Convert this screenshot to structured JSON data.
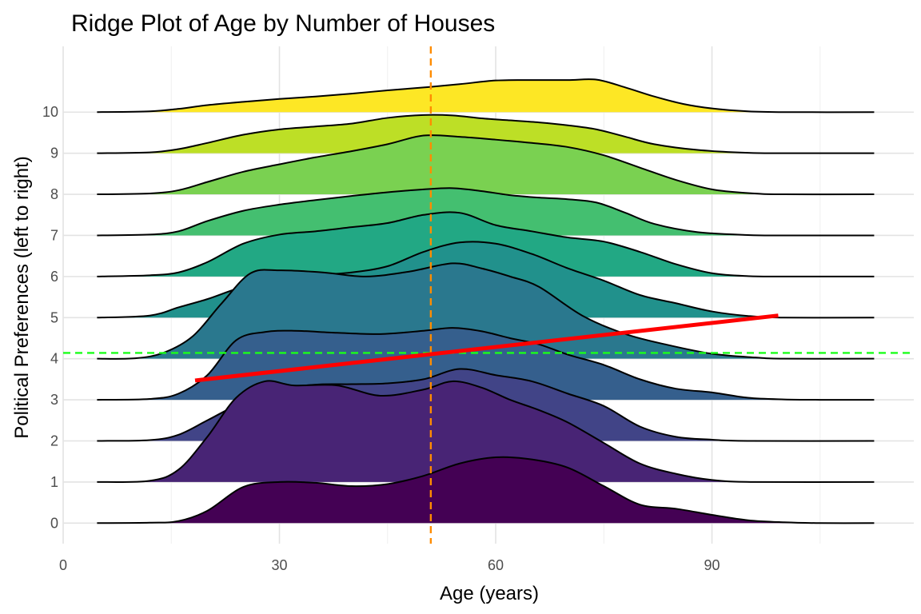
{
  "chart_data": {
    "type": "area",
    "subtype": "ridgeline",
    "title": "Ridge Plot of Age by Number of Houses",
    "xlabel": "Age (years)",
    "ylabel": "Political Preferences (left to right)",
    "xlim": [
      0,
      118
    ],
    "ylim": [
      -0.5,
      11.6
    ],
    "x_ticks": [
      0,
      30,
      60,
      90
    ],
    "y_ticks": [
      0,
      1,
      2,
      3,
      4,
      5,
      6,
      7,
      8,
      9,
      10
    ],
    "grid": true,
    "legend": "none",
    "x_grid": [
      0,
      15,
      30,
      45,
      60,
      75,
      90,
      105
    ],
    "x_range_density": [
      4.7,
      112.5
    ],
    "ridge_scale": 1.6,
    "colors": [
      "#440154",
      "#482475",
      "#414487",
      "#355f8d",
      "#2a788e",
      "#21918c",
      "#22a884",
      "#44bf70",
      "#7ad151",
      "#bddf26",
      "#fde725"
    ],
    "series": [
      {
        "name": "0",
        "knots": [
          [
            4.7,
            0
          ],
          [
            12,
            0.01
          ],
          [
            16,
            0.05
          ],
          [
            20,
            0.3
          ],
          [
            25,
            0.88
          ],
          [
            30,
            1.0
          ],
          [
            35,
            0.98
          ],
          [
            40,
            0.9
          ],
          [
            45,
            0.95
          ],
          [
            50,
            1.15
          ],
          [
            55,
            1.45
          ],
          [
            60,
            1.6
          ],
          [
            65,
            1.55
          ],
          [
            70,
            1.35
          ],
          [
            75,
            0.9
          ],
          [
            80,
            0.45
          ],
          [
            85,
            0.35
          ],
          [
            90,
            0.2
          ],
          [
            95,
            0.07
          ],
          [
            100,
            0.02
          ],
          [
            105,
            0
          ],
          [
            112.5,
            0
          ]
        ]
      },
      {
        "name": "1",
        "knots": [
          [
            4.7,
            0
          ],
          [
            12,
            0.03
          ],
          [
            16,
            0.3
          ],
          [
            20,
            1.1
          ],
          [
            24,
            2.05
          ],
          [
            28,
            2.45
          ],
          [
            32,
            2.35
          ],
          [
            38,
            2.35
          ],
          [
            44,
            2.1
          ],
          [
            50,
            2.25
          ],
          [
            54,
            2.45
          ],
          [
            58,
            2.3
          ],
          [
            62,
            2.0
          ],
          [
            66,
            1.75
          ],
          [
            70,
            1.45
          ],
          [
            75,
            0.95
          ],
          [
            80,
            0.45
          ],
          [
            85,
            0.2
          ],
          [
            90,
            0.05
          ],
          [
            96,
            0
          ],
          [
            112.5,
            0
          ]
        ]
      },
      {
        "name": "2",
        "knots": [
          [
            4.7,
            0
          ],
          [
            12,
            0.02
          ],
          [
            16,
            0.15
          ],
          [
            20,
            0.5
          ],
          [
            25,
            0.95
          ],
          [
            30,
            1.25
          ],
          [
            35,
            1.37
          ],
          [
            40,
            1.38
          ],
          [
            45,
            1.4
          ],
          [
            50,
            1.5
          ],
          [
            55,
            1.75
          ],
          [
            60,
            1.6
          ],
          [
            65,
            1.45
          ],
          [
            70,
            1.15
          ],
          [
            75,
            0.85
          ],
          [
            80,
            0.35
          ],
          [
            85,
            0.1
          ],
          [
            90,
            0.03
          ],
          [
            95,
            0
          ],
          [
            112.5,
            0
          ]
        ]
      },
      {
        "name": "3",
        "knots": [
          [
            4.7,
            0
          ],
          [
            12,
            0.02
          ],
          [
            16,
            0.15
          ],
          [
            20,
            0.6
          ],
          [
            24,
            1.45
          ],
          [
            28,
            1.65
          ],
          [
            32,
            1.68
          ],
          [
            38,
            1.63
          ],
          [
            44,
            1.6
          ],
          [
            50,
            1.68
          ],
          [
            54,
            1.75
          ],
          [
            58,
            1.67
          ],
          [
            62,
            1.5
          ],
          [
            66,
            1.35
          ],
          [
            70,
            1.1
          ],
          [
            75,
            0.85
          ],
          [
            80,
            0.5
          ],
          [
            85,
            0.27
          ],
          [
            90,
            0.18
          ],
          [
            95,
            0.05
          ],
          [
            100,
            0.01
          ],
          [
            105,
            0
          ],
          [
            112.5,
            0
          ]
        ]
      },
      {
        "name": "4",
        "knots": [
          [
            4.7,
            0
          ],
          [
            10,
            0.01
          ],
          [
            14,
            0.15
          ],
          [
            18,
            0.55
          ],
          [
            22,
            1.35
          ],
          [
            26,
            2.08
          ],
          [
            30,
            2.15
          ],
          [
            36,
            2.1
          ],
          [
            42,
            2.0
          ],
          [
            48,
            2.12
          ],
          [
            54,
            2.32
          ],
          [
            58,
            2.2
          ],
          [
            62,
            2.0
          ],
          [
            66,
            1.75
          ],
          [
            72,
            1.05
          ],
          [
            78,
            0.6
          ],
          [
            84,
            0.33
          ],
          [
            90,
            0.12
          ],
          [
            96,
            0.03
          ],
          [
            100,
            0
          ],
          [
            112.5,
            0
          ]
        ]
      },
      {
        "name": "5",
        "knots": [
          [
            4.7,
            0
          ],
          [
            12,
            0.05
          ],
          [
            16,
            0.25
          ],
          [
            20,
            0.45
          ],
          [
            25,
            0.75
          ],
          [
            30,
            0.9
          ],
          [
            35,
            1.03
          ],
          [
            40,
            1.1
          ],
          [
            45,
            1.25
          ],
          [
            50,
            1.6
          ],
          [
            55,
            1.83
          ],
          [
            60,
            1.8
          ],
          [
            65,
            1.55
          ],
          [
            70,
            1.2
          ],
          [
            75,
            0.9
          ],
          [
            80,
            0.55
          ],
          [
            85,
            0.35
          ],
          [
            90,
            0.15
          ],
          [
            95,
            0.04
          ],
          [
            100,
            0
          ],
          [
            112.5,
            0
          ]
        ]
      },
      {
        "name": "6",
        "knots": [
          [
            4.7,
            0
          ],
          [
            12,
            0.03
          ],
          [
            16,
            0.1
          ],
          [
            20,
            0.35
          ],
          [
            25,
            0.8
          ],
          [
            30,
            1.02
          ],
          [
            35,
            1.1
          ],
          [
            40,
            1.2
          ],
          [
            45,
            1.3
          ],
          [
            50,
            1.5
          ],
          [
            55,
            1.55
          ],
          [
            60,
            1.25
          ],
          [
            65,
            1.1
          ],
          [
            70,
            0.95
          ],
          [
            75,
            0.85
          ],
          [
            80,
            0.6
          ],
          [
            85,
            0.3
          ],
          [
            90,
            0.08
          ],
          [
            95,
            0.01
          ],
          [
            100,
            0
          ],
          [
            112.5,
            0
          ]
        ]
      },
      {
        "name": "7",
        "knots": [
          [
            4.7,
            0
          ],
          [
            12,
            0.02
          ],
          [
            16,
            0.1
          ],
          [
            20,
            0.35
          ],
          [
            25,
            0.6
          ],
          [
            30,
            0.75
          ],
          [
            35,
            0.86
          ],
          [
            40,
            0.96
          ],
          [
            45,
            1.05
          ],
          [
            50,
            1.12
          ],
          [
            54,
            1.15
          ],
          [
            58,
            1.08
          ],
          [
            62,
            0.98
          ],
          [
            66,
            0.92
          ],
          [
            70,
            0.88
          ],
          [
            74,
            0.8
          ],
          [
            78,
            0.55
          ],
          [
            82,
            0.28
          ],
          [
            88,
            0.08
          ],
          [
            95,
            0.01
          ],
          [
            100,
            0
          ],
          [
            112.5,
            0
          ]
        ]
      },
      {
        "name": "8",
        "knots": [
          [
            4.7,
            0
          ],
          [
            12,
            0.02
          ],
          [
            16,
            0.1
          ],
          [
            20,
            0.3
          ],
          [
            25,
            0.55
          ],
          [
            30,
            0.73
          ],
          [
            35,
            0.9
          ],
          [
            40,
            1.05
          ],
          [
            45,
            1.22
          ],
          [
            50,
            1.43
          ],
          [
            55,
            1.4
          ],
          [
            60,
            1.33
          ],
          [
            65,
            1.25
          ],
          [
            70,
            1.15
          ],
          [
            75,
            0.95
          ],
          [
            80,
            0.65
          ],
          [
            85,
            0.35
          ],
          [
            90,
            0.12
          ],
          [
            95,
            0.03
          ],
          [
            100,
            0
          ],
          [
            112.5,
            0
          ]
        ]
      },
      {
        "name": "9",
        "knots": [
          [
            4.7,
            0
          ],
          [
            12,
            0.02
          ],
          [
            16,
            0.1
          ],
          [
            20,
            0.25
          ],
          [
            25,
            0.45
          ],
          [
            30,
            0.58
          ],
          [
            35,
            0.65
          ],
          [
            40,
            0.72
          ],
          [
            45,
            0.86
          ],
          [
            50,
            0.93
          ],
          [
            54,
            0.92
          ],
          [
            58,
            0.85
          ],
          [
            62,
            0.8
          ],
          [
            66,
            0.75
          ],
          [
            70,
            0.68
          ],
          [
            74,
            0.58
          ],
          [
            78,
            0.4
          ],
          [
            82,
            0.22
          ],
          [
            88,
            0.08
          ],
          [
            95,
            0.01
          ],
          [
            100,
            0
          ],
          [
            112.5,
            0
          ]
        ]
      },
      {
        "name": "10",
        "knots": [
          [
            4.7,
            0
          ],
          [
            12,
            0.02
          ],
          [
            16,
            0.08
          ],
          [
            20,
            0.17
          ],
          [
            25,
            0.25
          ],
          [
            30,
            0.32
          ],
          [
            35,
            0.38
          ],
          [
            40,
            0.45
          ],
          [
            45,
            0.53
          ],
          [
            50,
            0.6
          ],
          [
            55,
            0.68
          ],
          [
            60,
            0.77
          ],
          [
            65,
            0.78
          ],
          [
            70,
            0.78
          ],
          [
            74,
            0.79
          ],
          [
            78,
            0.6
          ],
          [
            82,
            0.38
          ],
          [
            86,
            0.2
          ],
          [
            90,
            0.09
          ],
          [
            95,
            0.02
          ],
          [
            100,
            0
          ],
          [
            112.5,
            0
          ]
        ]
      }
    ],
    "reference_lines": {
      "vertical_dashed": {
        "x": 51,
        "color": "#ff8c00"
      },
      "horizontal_dashed": {
        "y": 4.14,
        "color": "#1aff1a"
      },
      "trend_line": {
        "x": [
          18.3,
          99.2
        ],
        "y": [
          3.47,
          5.05
        ],
        "color": "#ff0000"
      }
    }
  }
}
